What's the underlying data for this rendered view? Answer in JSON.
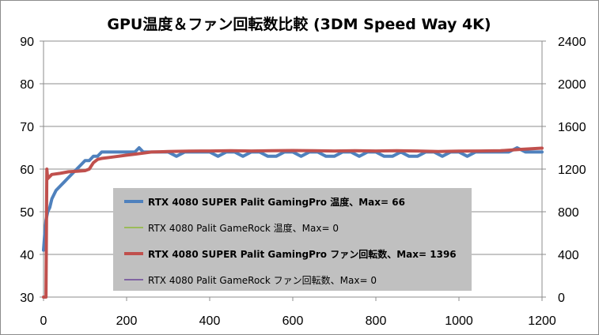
{
  "chart_data": {
    "type": "line",
    "title": "GPU温度＆ファン回転数比較 (3DM Speed Way 4K)",
    "xlabel": "",
    "ylabel": "",
    "y2label": "",
    "xlim": [
      0,
      1200
    ],
    "ylim": [
      30,
      90
    ],
    "y2lim": [
      0,
      2400
    ],
    "x_ticks": [
      0,
      200,
      400,
      600,
      800,
      1000,
      1200
    ],
    "y_ticks": [
      30,
      40,
      50,
      60,
      70,
      80,
      90
    ],
    "y2_ticks": [
      0,
      400,
      800,
      1200,
      1600,
      2000,
      2400
    ],
    "grid": "horizontal",
    "legend_position": "center-bottom",
    "series": [
      {
        "name": "RTX 4080 SUPER Palit GamingPro 温度、Max= 66",
        "axis": "left",
        "color": "#4f81bd",
        "bold": true,
        "x": [
          0,
          3,
          6,
          10,
          15,
          20,
          30,
          40,
          50,
          60,
          70,
          80,
          90,
          100,
          110,
          120,
          130,
          140,
          150,
          160,
          170,
          180,
          190,
          200,
          210,
          220,
          230,
          240,
          260,
          280,
          300,
          320,
          340,
          360,
          380,
          400,
          420,
          440,
          460,
          480,
          500,
          520,
          540,
          560,
          580,
          600,
          620,
          640,
          660,
          680,
          700,
          720,
          740,
          760,
          780,
          800,
          820,
          840,
          860,
          880,
          900,
          920,
          940,
          960,
          980,
          1000,
          1020,
          1040,
          1060,
          1080,
          1100,
          1120,
          1140,
          1160,
          1180,
          1200
        ],
        "values": [
          41,
          45,
          48,
          50,
          51,
          53,
          55,
          56,
          57,
          58,
          59,
          60,
          61,
          62,
          62,
          63,
          63,
          64,
          64,
          64,
          64,
          64,
          64,
          64,
          64,
          64,
          65,
          64,
          64,
          64,
          64,
          63,
          64,
          64,
          64,
          64,
          63,
          64,
          64,
          63,
          64,
          64,
          63,
          63,
          64,
          64,
          63,
          64,
          64,
          63,
          63,
          64,
          64,
          63,
          64,
          64,
          63,
          63,
          64,
          63,
          63,
          64,
          64,
          63,
          64,
          64,
          63,
          64,
          64,
          64,
          64,
          64,
          65,
          64,
          64,
          64
        ]
      },
      {
        "name": "RTX 4080 Palit GameRock 温度、Max= 0",
        "axis": "left",
        "color": "#9bbb59",
        "bold": false,
        "x": [],
        "values": []
      },
      {
        "name": "RTX 4080 SUPER Palit GamingPro ファン回転数、Max= 1396",
        "axis": "right",
        "color": "#c0504d",
        "bold": true,
        "x": [
          0,
          6,
          7,
          8,
          10,
          15,
          20,
          40,
          60,
          80,
          100,
          110,
          120,
          130,
          140,
          160,
          180,
          200,
          220,
          240,
          260,
          280,
          300,
          350,
          400,
          450,
          500,
          550,
          600,
          650,
          700,
          750,
          800,
          850,
          900,
          950,
          1000,
          1050,
          1100,
          1150,
          1200
        ],
        "values": [
          0,
          0,
          650,
          1200,
          1110,
          1130,
          1150,
          1160,
          1175,
          1180,
          1185,
          1200,
          1260,
          1290,
          1300,
          1310,
          1320,
          1330,
          1340,
          1350,
          1360,
          1362,
          1365,
          1368,
          1370,
          1372,
          1370,
          1372,
          1374,
          1372,
          1370,
          1372,
          1370,
          1372,
          1370,
          1365,
          1368,
          1370,
          1372,
          1385,
          1396
        ]
      },
      {
        "name": "RTX 4080 Palit GameRock ファン回転数、Max= 0",
        "axis": "right",
        "color": "#8064a2",
        "bold": false,
        "x": [],
        "values": []
      }
    ]
  }
}
